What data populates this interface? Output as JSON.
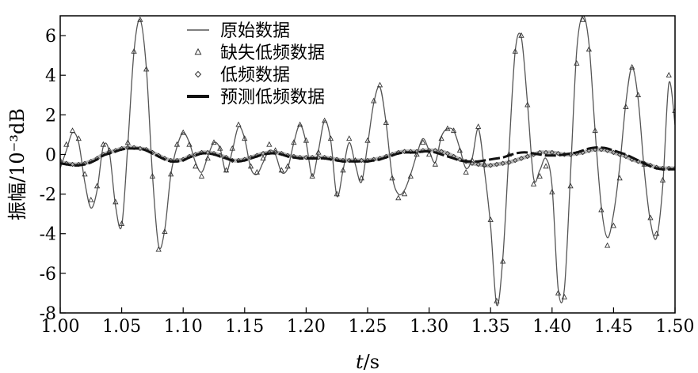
{
  "chart_data": {
    "type": "line",
    "title": "",
    "xlabel": "t/s",
    "ylabel": "振幅/10⁻³dB",
    "xlim": [
      1.0,
      1.5
    ],
    "ylim": [
      -8,
      7
    ],
    "xticks": [
      "1.00",
      "1.05",
      "1.10",
      "1.15",
      "1.20",
      "1.25",
      "1.30",
      "1.35",
      "1.40",
      "1.45",
      "1.50"
    ],
    "yticks": [
      "-8",
      "-6",
      "-4",
      "-2",
      "0",
      "2",
      "4",
      "6"
    ],
    "legend_position": "top-left",
    "grid": false,
    "x": [
      1.0,
      1.005,
      1.01,
      1.015,
      1.02,
      1.025,
      1.03,
      1.035,
      1.04,
      1.045,
      1.05,
      1.055,
      1.06,
      1.065,
      1.07,
      1.075,
      1.08,
      1.085,
      1.09,
      1.095,
      1.1,
      1.105,
      1.11,
      1.115,
      1.12,
      1.125,
      1.13,
      1.135,
      1.14,
      1.145,
      1.15,
      1.155,
      1.16,
      1.165,
      1.17,
      1.175,
      1.18,
      1.185,
      1.19,
      1.195,
      1.2,
      1.205,
      1.21,
      1.215,
      1.22,
      1.225,
      1.23,
      1.235,
      1.24,
      1.245,
      1.25,
      1.255,
      1.26,
      1.265,
      1.27,
      1.275,
      1.28,
      1.285,
      1.29,
      1.295,
      1.3,
      1.305,
      1.31,
      1.315,
      1.32,
      1.325,
      1.33,
      1.335,
      1.34,
      1.345,
      1.35,
      1.355,
      1.36,
      1.365,
      1.37,
      1.375,
      1.38,
      1.385,
      1.39,
      1.395,
      1.4,
      1.405,
      1.41,
      1.415,
      1.42,
      1.425,
      1.43,
      1.435,
      1.44,
      1.445,
      1.45,
      1.455,
      1.46,
      1.465,
      1.47,
      1.475,
      1.48,
      1.485,
      1.49,
      1.495,
      1.5
    ],
    "series": [
      {
        "name": "原始数据",
        "style": "line",
        "color": "#555555",
        "values": [
          -0.7,
          0.2,
          1.1,
          0.6,
          -1.4,
          -2.7,
          -1.8,
          0.4,
          0.1,
          -2.6,
          -3.6,
          0.5,
          5.2,
          6.8,
          4.4,
          -1.0,
          -4.6,
          -3.8,
          -1.0,
          0.4,
          1.1,
          0.6,
          -0.4,
          -0.9,
          -0.1,
          0.6,
          0.3,
          -0.9,
          0.2,
          1.4,
          0.8,
          -0.7,
          -1.0,
          -0.4,
          0.2,
          0.0,
          -0.9,
          -0.7,
          0.6,
          1.5,
          0.6,
          -1.1,
          0.2,
          1.7,
          0.7,
          -2.1,
          -0.8,
          0.6,
          -0.5,
          -1.4,
          0.5,
          2.6,
          3.4,
          1.6,
          -1.1,
          -2.0,
          -1.8,
          -1.0,
          0.0,
          0.8,
          0.2,
          -0.4,
          0.9,
          1.3,
          1.2,
          0.3,
          -0.7,
          -0.2,
          1.3,
          -0.8,
          -3.6,
          -7.6,
          -5.2,
          0.2,
          5.2,
          5.9,
          2.6,
          -1.2,
          -0.8,
          -0.2,
          -1.6,
          -6.8,
          -6.8,
          -1.0,
          5.2,
          7.0,
          5.6,
          1.2,
          -2.6,
          -4.2,
          -3.0,
          -0.6,
          2.6,
          4.4,
          2.8,
          -0.8,
          -3.4,
          -4.2,
          -1.6,
          3.6,
          1.5
        ]
      },
      {
        "name": "缺失低频数据",
        "style": "triangle",
        "color": "#333333",
        "values": [
          -0.3,
          0.5,
          1.2,
          0.8,
          -1.0,
          -2.3,
          -1.6,
          0.5,
          0.2,
          -2.4,
          -3.5,
          0.6,
          5.2,
          6.8,
          4.3,
          -1.1,
          -4.8,
          -3.9,
          -1.0,
          0.5,
          1.1,
          0.5,
          -0.6,
          -1.1,
          -0.2,
          0.6,
          0.3,
          -0.8,
          0.3,
          1.5,
          0.8,
          -0.6,
          -0.9,
          -0.2,
          0.5,
          0.2,
          -0.8,
          -0.6,
          0.6,
          1.5,
          0.7,
          -1.1,
          0.1,
          1.7,
          0.8,
          -2.0,
          -0.8,
          0.8,
          -0.3,
          -1.2,
          0.7,
          2.7,
          3.5,
          1.6,
          -1.2,
          -2.2,
          -2.0,
          -1.1,
          0.0,
          0.6,
          0.0,
          -0.5,
          0.8,
          1.3,
          1.2,
          0.2,
          -0.9,
          -0.3,
          1.4,
          -0.5,
          -3.3,
          -7.4,
          -5.4,
          0.0,
          5.2,
          6.0,
          2.5,
          -1.5,
          -1.1,
          -0.6,
          -1.9,
          -7.0,
          -7.2,
          -1.6,
          4.6,
          6.8,
          5.3,
          1.2,
          -2.8,
          -4.6,
          -3.6,
          -1.2,
          2.4,
          4.4,
          3.0,
          -0.5,
          -3.2,
          -4.0,
          -1.3,
          4.0,
          2.2
        ]
      },
      {
        "name": "低频数据",
        "style": "diamond",
        "color": "#333333",
        "values": [
          -0.4,
          -0.45,
          -0.5,
          -0.5,
          -0.45,
          -0.35,
          -0.2,
          0.0,
          0.1,
          0.2,
          0.3,
          0.35,
          0.35,
          0.3,
          0.25,
          0.1,
          -0.05,
          -0.2,
          -0.3,
          -0.3,
          -0.25,
          -0.1,
          0.0,
          0.1,
          0.1,
          0.05,
          -0.05,
          -0.15,
          -0.3,
          -0.3,
          -0.25,
          -0.15,
          -0.05,
          0.05,
          0.1,
          0.1,
          0.05,
          -0.05,
          -0.1,
          -0.15,
          -0.15,
          -0.15,
          -0.15,
          -0.15,
          -0.2,
          -0.25,
          -0.3,
          -0.3,
          -0.3,
          -0.3,
          -0.3,
          -0.25,
          -0.2,
          -0.1,
          0.0,
          0.1,
          0.15,
          0.15,
          0.15,
          0.2,
          0.2,
          0.2,
          0.15,
          0.05,
          -0.1,
          -0.25,
          -0.35,
          -0.45,
          -0.5,
          -0.55,
          -0.55,
          -0.5,
          -0.45,
          -0.4,
          -0.3,
          -0.2,
          -0.1,
          0.0,
          0.1,
          0.1,
          0.1,
          0.05,
          0.0,
          0.0,
          0.05,
          0.1,
          0.2,
          0.25,
          0.25,
          0.2,
          0.1,
          0.0,
          -0.1,
          -0.25,
          -0.35,
          -0.45,
          -0.55,
          -0.65,
          -0.7,
          -0.7,
          -0.7
        ]
      },
      {
        "name": "预测低频数据",
        "style": "thick-dashed",
        "color": "#111111",
        "values": [
          -0.45,
          -0.5,
          -0.55,
          -0.55,
          -0.5,
          -0.4,
          -0.25,
          -0.05,
          0.05,
          0.15,
          0.25,
          0.3,
          0.3,
          0.3,
          0.2,
          0.05,
          -0.1,
          -0.25,
          -0.35,
          -0.35,
          -0.3,
          -0.15,
          -0.05,
          0.05,
          0.05,
          0.0,
          -0.1,
          -0.2,
          -0.3,
          -0.35,
          -0.3,
          -0.2,
          -0.1,
          0.0,
          0.05,
          0.05,
          0.0,
          -0.1,
          -0.15,
          -0.2,
          -0.2,
          -0.2,
          -0.2,
          -0.2,
          -0.25,
          -0.3,
          -0.35,
          -0.35,
          -0.35,
          -0.35,
          -0.35,
          -0.3,
          -0.25,
          -0.15,
          -0.05,
          0.05,
          0.1,
          0.1,
          0.1,
          0.15,
          0.15,
          0.1,
          0.0,
          -0.1,
          -0.2,
          -0.3,
          -0.35,
          -0.35,
          -0.35,
          -0.3,
          -0.25,
          -0.2,
          -0.15,
          -0.05,
          0.05,
          0.1,
          0.1,
          0.05,
          0.0,
          -0.05,
          -0.05,
          -0.05,
          0.0,
          0.05,
          0.1,
          0.2,
          0.3,
          0.35,
          0.35,
          0.3,
          0.2,
          0.1,
          0.0,
          -0.15,
          -0.3,
          -0.45,
          -0.6,
          -0.7,
          -0.75,
          -0.75,
          -0.75
        ]
      }
    ]
  }
}
